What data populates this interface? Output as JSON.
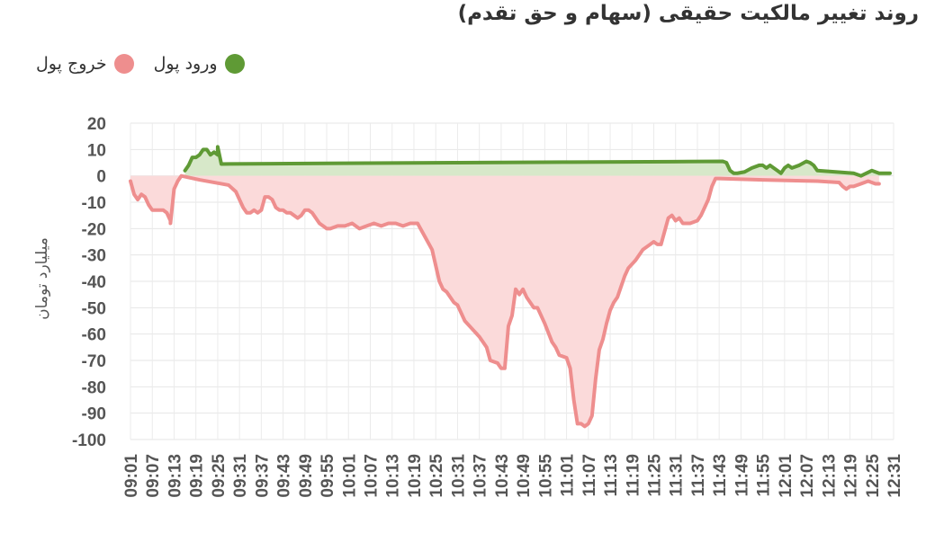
{
  "chart_data": {
    "type": "area",
    "title": "روند تغییر مالکیت حقیقی (سهام و حق تقدم)",
    "ylabel": "میلیارد تومان",
    "xlabel": "",
    "ylim": [
      -100,
      20
    ],
    "yticks": [
      20,
      10,
      0,
      -10,
      -20,
      -30,
      -40,
      -50,
      -60,
      -70,
      -80,
      -90,
      -100
    ],
    "xticks": [
      "09:01",
      "09:07",
      "09:13",
      "09:19",
      "09:25",
      "09:31",
      "09:37",
      "09:43",
      "09:49",
      "09:55",
      "10:01",
      "10:07",
      "10:13",
      "10:19",
      "10:25",
      "10:31",
      "10:37",
      "10:43",
      "10:49",
      "10:55",
      "11:01",
      "11:07",
      "11:13",
      "11:19",
      "11:25",
      "11:31",
      "11:37",
      "11:43",
      "11:49",
      "11:55",
      "12:01",
      "12:07",
      "12:13",
      "12:19",
      "12:25",
      "12:31"
    ],
    "grid": true,
    "legend": "top-left",
    "series": [
      {
        "name": "ورود پول",
        "color": "#5f9a35",
        "fill": "#d7e8c9",
        "points": [
          [
            "09:16",
            2
          ],
          [
            "09:17",
            4
          ],
          [
            "09:18",
            7
          ],
          [
            "09:19",
            7
          ],
          [
            "09:20",
            8
          ],
          [
            "09:21",
            10
          ],
          [
            "09:22",
            10
          ],
          [
            "09:23",
            8
          ],
          [
            "09:24",
            9
          ],
          [
            "09:25",
            8
          ],
          [
            "09:25",
            11
          ],
          [
            "09:26",
            4.5
          ],
          [
            "09:40",
            4.6
          ],
          [
            "10:00",
            4.8
          ],
          [
            "10:30",
            5
          ],
          [
            "11:00",
            5.2
          ],
          [
            "11:30",
            5.4
          ],
          [
            "11:44",
            5.5
          ],
          [
            "11:45",
            5
          ],
          [
            "11:46",
            2
          ],
          [
            "11:47",
            1
          ],
          [
            "11:48",
            1
          ],
          [
            "11:50",
            1.5
          ],
          [
            "11:52",
            3
          ],
          [
            "11:54",
            4
          ],
          [
            "11:55",
            4
          ],
          [
            "11:56",
            3
          ],
          [
            "11:57",
            4
          ],
          [
            "11:58",
            3
          ],
          [
            "11:59",
            2
          ],
          [
            "12:00",
            1
          ],
          [
            "12:01",
            3
          ],
          [
            "12:02",
            4
          ],
          [
            "12:03",
            3
          ],
          [
            "12:05",
            4
          ],
          [
            "12:07",
            5.5
          ],
          [
            "12:08",
            5
          ],
          [
            "12:09",
            4
          ],
          [
            "12:10",
            2
          ],
          [
            "12:15",
            1.5
          ],
          [
            "12:20",
            1
          ],
          [
            "12:22",
            0
          ],
          [
            "12:25",
            2
          ],
          [
            "12:27",
            1
          ],
          [
            "12:29",
            1
          ],
          [
            "12:30",
            1
          ]
        ]
      },
      {
        "name": "خروج پول",
        "color": "#ee8e8e",
        "fill": "#fbdada",
        "points": [
          [
            "09:01",
            -2
          ],
          [
            "09:02",
            -7
          ],
          [
            "09:03",
            -9
          ],
          [
            "09:04",
            -7
          ],
          [
            "09:05",
            -8
          ],
          [
            "09:06",
            -11
          ],
          [
            "09:07",
            -13
          ],
          [
            "09:08",
            -13
          ],
          [
            "09:09",
            -13
          ],
          [
            "09:10",
            -13
          ],
          [
            "09:11",
            -14
          ],
          [
            "09:12",
            -17
          ],
          [
            "09:12",
            -18
          ],
          [
            "09:13",
            -5
          ],
          [
            "09:14",
            -2
          ],
          [
            "09:15",
            0
          ],
          [
            "09:20",
            -1.5
          ],
          [
            "09:26",
            -3
          ],
          [
            "09:28",
            -3.5
          ],
          [
            "09:30",
            -6
          ],
          [
            "09:31",
            -9
          ],
          [
            "09:32",
            -12
          ],
          [
            "09:33",
            -14
          ],
          [
            "09:34",
            -14
          ],
          [
            "09:35",
            -13
          ],
          [
            "09:36",
            -14
          ],
          [
            "09:37",
            -13
          ],
          [
            "09:38",
            -8
          ],
          [
            "09:39",
            -8
          ],
          [
            "09:40",
            -9
          ],
          [
            "09:41",
            -12
          ],
          [
            "09:42",
            -13
          ],
          [
            "09:43",
            -13
          ],
          [
            "09:44",
            -14
          ],
          [
            "09:45",
            -14
          ],
          [
            "09:46",
            -15
          ],
          [
            "09:47",
            -16
          ],
          [
            "09:48",
            -15
          ],
          [
            "09:49",
            -13
          ],
          [
            "09:50",
            -13
          ],
          [
            "09:51",
            -14
          ],
          [
            "09:52",
            -16
          ],
          [
            "09:53",
            -18
          ],
          [
            "09:54",
            -19
          ],
          [
            "09:55",
            -20
          ],
          [
            "09:56",
            -20
          ],
          [
            "09:58",
            -19
          ],
          [
            "10:00",
            -19
          ],
          [
            "10:02",
            -18
          ],
          [
            "10:04",
            -20
          ],
          [
            "10:06",
            -19
          ],
          [
            "10:08",
            -18
          ],
          [
            "10:10",
            -19
          ],
          [
            "10:12",
            -18
          ],
          [
            "10:14",
            -18
          ],
          [
            "10:16",
            -19
          ],
          [
            "10:18",
            -18
          ],
          [
            "10:20",
            -18
          ],
          [
            "10:22",
            -23
          ],
          [
            "10:24",
            -28
          ],
          [
            "10:25",
            -34
          ],
          [
            "10:26",
            -40
          ],
          [
            "10:27",
            -43
          ],
          [
            "10:28",
            -44
          ],
          [
            "10:30",
            -48
          ],
          [
            "10:31",
            -49
          ],
          [
            "10:33",
            -55
          ],
          [
            "10:35",
            -58
          ],
          [
            "10:37",
            -61
          ],
          [
            "10:39",
            -65
          ],
          [
            "10:40",
            -70
          ],
          [
            "10:42",
            -71
          ],
          [
            "10:43",
            -73
          ],
          [
            "10:44",
            -73
          ],
          [
            "10:45",
            -57
          ],
          [
            "10:46",
            -53
          ],
          [
            "10:47",
            -43
          ],
          [
            "10:48",
            -45
          ],
          [
            "10:49",
            -43
          ],
          [
            "10:50",
            -46
          ],
          [
            "10:52",
            -50
          ],
          [
            "10:53",
            -50
          ],
          [
            "10:55",
            -56
          ],
          [
            "10:57",
            -63
          ],
          [
            "10:58",
            -65
          ],
          [
            "10:59",
            -68
          ],
          [
            "11:01",
            -69
          ],
          [
            "11:02",
            -73
          ],
          [
            "11:03",
            -85
          ],
          [
            "11:04",
            -94
          ],
          [
            "11:05",
            -94
          ],
          [
            "11:06",
            -95
          ],
          [
            "11:07",
            -94
          ],
          [
            "11:08",
            -91
          ],
          [
            "11:09",
            -77
          ],
          [
            "11:10",
            -66
          ],
          [
            "11:11",
            -62
          ],
          [
            "11:12",
            -56
          ],
          [
            "11:13",
            -51
          ],
          [
            "11:14",
            -48
          ],
          [
            "11:15",
            -46
          ],
          [
            "11:16",
            -42
          ],
          [
            "11:17",
            -38
          ],
          [
            "11:18",
            -35
          ],
          [
            "11:20",
            -32
          ],
          [
            "11:22",
            -28
          ],
          [
            "11:24",
            -26
          ],
          [
            "11:25",
            -25
          ],
          [
            "11:26",
            -26
          ],
          [
            "11:27",
            -26
          ],
          [
            "11:28",
            -21
          ],
          [
            "11:29",
            -16
          ],
          [
            "11:30",
            -15
          ],
          [
            "11:31",
            -17
          ],
          [
            "11:32",
            -16
          ],
          [
            "11:33",
            -18
          ],
          [
            "11:35",
            -18
          ],
          [
            "11:37",
            -17
          ],
          [
            "11:38",
            -15
          ],
          [
            "11:39",
            -12
          ],
          [
            "11:40",
            -9
          ],
          [
            "11:41",
            -4
          ],
          [
            "11:42",
            -1
          ],
          [
            "11:43",
            -1
          ],
          [
            "11:55",
            -1.5
          ],
          [
            "12:10",
            -2
          ],
          [
            "12:16",
            -2.5
          ],
          [
            "12:17",
            -4
          ],
          [
            "12:18",
            -5
          ],
          [
            "12:19",
            -4
          ],
          [
            "12:20",
            -4
          ],
          [
            "12:22",
            -3
          ],
          [
            "12:24",
            -2
          ],
          [
            "12:26",
            -3
          ],
          [
            "12:27",
            -3
          ]
        ]
      }
    ]
  }
}
